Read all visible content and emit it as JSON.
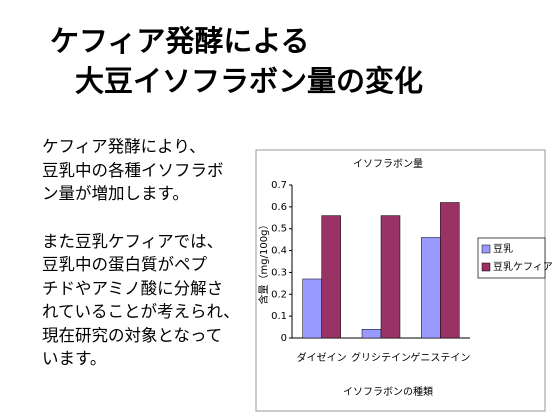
{
  "slide": {
    "title_lines": [
      "ケフィア発酵による",
      "大豆イソフラボン量の変化"
    ],
    "paragraphs": [
      [
        "ケフィア発酵により、",
        "豆乳中の各種イソフラボ",
        "ン量が増加します。"
      ],
      [
        "また豆乳ケフィアでは、",
        "豆乳中の蛋白質がペプ",
        "チドやアミノ酸に分解さ",
        "れていることが考えられ、",
        "現在研究の対象となって",
        "います。"
      ]
    ]
  },
  "chart_data": {
    "type": "bar",
    "title": "イソフラボン量",
    "x_label": "イソフラボンの種類",
    "y_label": "含量（mg/100g）",
    "categories": [
      "ダイゼイン",
      "グリシテイン",
      "ゲニステイン"
    ],
    "series": [
      {
        "name": "豆乳",
        "color": "#9999ff",
        "values": [
          0.27,
          0.04,
          0.46
        ]
      },
      {
        "name": "豆乳ケフィア",
        "color": "#993366",
        "values": [
          0.56,
          0.56,
          0.62
        ]
      }
    ],
    "ylim": [
      0,
      0.7
    ],
    "yticks": [
      0,
      0.1,
      0.2,
      0.3,
      0.4,
      0.5,
      0.6,
      0.7
    ],
    "grid": false,
    "legend": "right"
  }
}
